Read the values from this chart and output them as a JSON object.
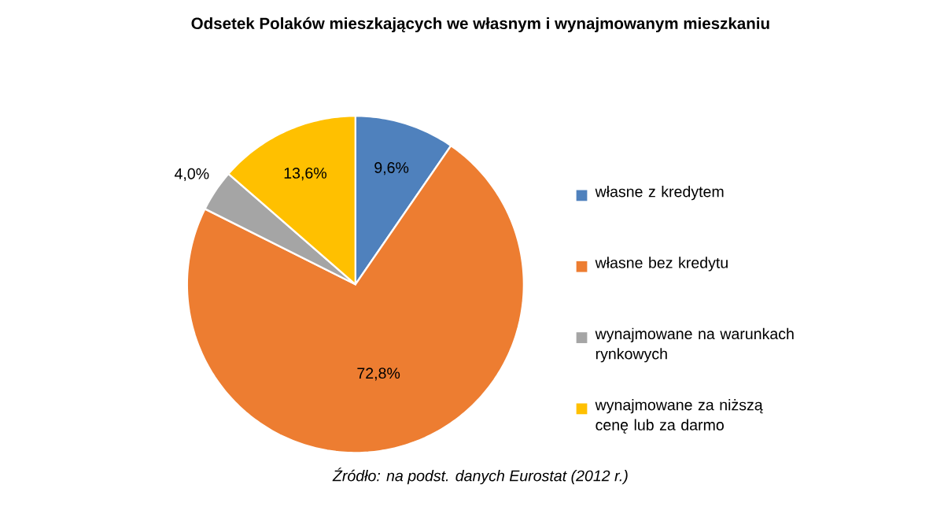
{
  "chart_data": {
    "type": "pie",
    "title": "Odsetek Polaków mieszkających we własnym i wynajmowanym mieszkaniu",
    "categories": [
      "własne z kredytem",
      "własne bez kredytu",
      "wynajmowane na warunkach rynkowych",
      "wynajmowane za niższą cenę lub za darmo"
    ],
    "values": [
      9.6,
      72.8,
      4.0,
      13.6
    ],
    "colors": [
      "#4f81bd",
      "#ed7d31",
      "#a5a5a5",
      "#ffc000"
    ],
    "value_labels": [
      "9,6%",
      "72,8%",
      "4,0%",
      "13,6%"
    ],
    "legend": "right",
    "annotations": [
      "*Źródło: na podst. danych Eurostat (2012 r.)*"
    ]
  }
}
